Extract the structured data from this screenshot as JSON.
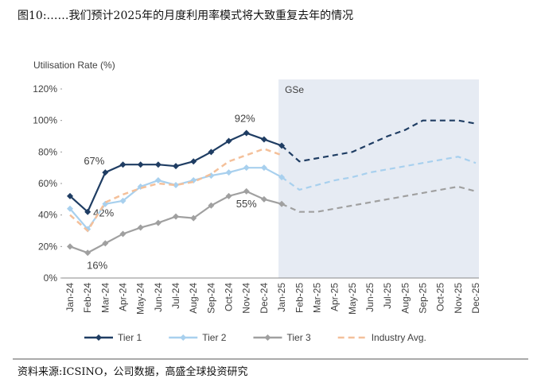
{
  "chart_data": {
    "type": "line",
    "title": "图10:……我们预计2025年的月度利用率模式将大致重复去年的情况",
    "source": "资料来源:ICSINO，公司数据，高盛全球投资研究",
    "y_label": "Utilisation Rate (%)",
    "forecast_label": "GSe",
    "forecast_start": "Jan-25",
    "shade_color": "#e6ebf3",
    "grid": false,
    "legend": "bottom",
    "categories": [
      "Jan-24",
      "Feb-24",
      "Mar-24",
      "Apr-24",
      "May-24",
      "Jun-24",
      "Jul-24",
      "Aug-24",
      "Sep-24",
      "Oct-24",
      "Nov-24",
      "Dec-24",
      "Jan-25",
      "Feb-25",
      "Mar-25",
      "Apr-25",
      "May-25",
      "Jun-25",
      "Jul-25",
      "Aug-25",
      "Sep-25",
      "Oct-25",
      "Nov-25",
      "Dec-25"
    ],
    "ylim": [
      0,
      120
    ],
    "yticks": [
      {
        "value": 0,
        "label": "0%"
      },
      {
        "value": 20,
        "label": "20%"
      },
      {
        "value": 40,
        "label": "40%"
      },
      {
        "value": 60,
        "label": "60%"
      },
      {
        "value": 80,
        "label": "80%"
      },
      {
        "value": 100,
        "label": "100%"
      },
      {
        "value": 120,
        "label": "120%"
      }
    ],
    "series": [
      {
        "name": "Tier 1",
        "color": "#1f3d63",
        "marker": true,
        "values": [
          52,
          42,
          67,
          72,
          72,
          72,
          71,
          74,
          80,
          87,
          92,
          88,
          84,
          74,
          76,
          78,
          80,
          85,
          90,
          94,
          100,
          100,
          100,
          98
        ],
        "value_labels": [
          null,
          "42%",
          "67%",
          null,
          null,
          null,
          null,
          null,
          null,
          null,
          "92%",
          null,
          null,
          null,
          null,
          null,
          null,
          null,
          null,
          null,
          null,
          null,
          null,
          null
        ]
      },
      {
        "name": "Tier 2",
        "color": "#a8d0ee",
        "marker": true,
        "values": [
          44,
          31,
          47,
          49,
          58,
          62,
          59,
          62,
          65,
          67,
          70,
          70,
          64,
          56,
          59,
          62,
          64,
          67,
          69,
          71,
          73,
          75,
          77,
          73
        ]
      },
      {
        "name": "Tier 3",
        "color": "#a0a0a0",
        "marker": true,
        "values": [
          20,
          16,
          22,
          28,
          32,
          35,
          39,
          38,
          46,
          52,
          55,
          50,
          47,
          42,
          42,
          44,
          46,
          48,
          50,
          52,
          54,
          56,
          58,
          55
        ],
        "value_labels": [
          null,
          "16%",
          null,
          null,
          null,
          null,
          null,
          null,
          null,
          null,
          "55%",
          null,
          null,
          null,
          null,
          null,
          null,
          null,
          null,
          null,
          null,
          null,
          null,
          null
        ]
      },
      {
        "name": "Industry Avg.",
        "color": "#f4c09a",
        "marker": false,
        "dashed": true,
        "values": [
          40,
          30,
          48,
          53,
          57,
          60,
          59,
          61,
          66,
          74,
          78,
          82,
          78,
          null,
          null,
          null,
          null,
          null,
          null,
          null,
          null,
          null,
          null,
          null
        ]
      }
    ]
  }
}
